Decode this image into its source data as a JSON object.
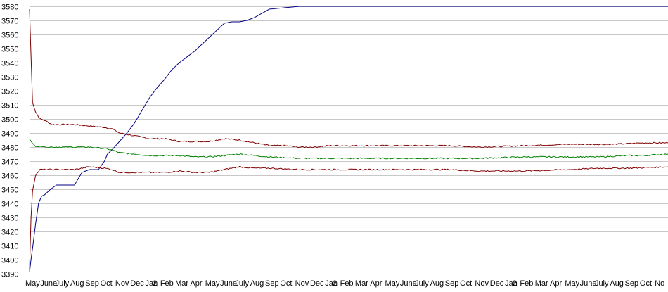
{
  "chart_data": {
    "type": "line",
    "title": "",
    "xlabel": "",
    "ylabel": "",
    "ylim": [
      3390,
      3580
    ],
    "grid": true,
    "legend": "none",
    "y_ticks": [
      3390,
      3400,
      3410,
      3420,
      3430,
      3440,
      3450,
      3460,
      3470,
      3480,
      3490,
      3500,
      3510,
      3520,
      3530,
      3540,
      3550,
      3560,
      3570,
      3580
    ],
    "x_ticks": [
      "May",
      "June",
      "July",
      "Aug",
      "Sep",
      "Oct",
      "Nov",
      "Dec",
      "Jan",
      "2",
      "Feb",
      "Mar",
      "Apr",
      "May",
      "June",
      "July",
      "Aug",
      "Sep",
      "Oct",
      "Nov",
      "Dec",
      "Jan",
      "2",
      "Feb",
      "Mar",
      "Apr",
      "May",
      "June",
      "July",
      "Aug",
      "Sep",
      "Oct",
      "Nov",
      "Dec",
      "Jan",
      "2",
      "Feb",
      "Mar",
      "Apr",
      "May",
      "June",
      "July",
      "Aug",
      "Sep",
      "Oct",
      "No"
    ],
    "x_tick_index": [
      0,
      1,
      2,
      3,
      4,
      5,
      6,
      7,
      8,
      8.5,
      9,
      10,
      11,
      12,
      13,
      14,
      15,
      16,
      17,
      18,
      19,
      20,
      20.5,
      21,
      22,
      23,
      24,
      25,
      26,
      27,
      28,
      29,
      30,
      31,
      32,
      32.5,
      33,
      34,
      35,
      36,
      37,
      38,
      39,
      40,
      41,
      42
    ],
    "x_range": [
      0,
      42.6
    ],
    "series": [
      {
        "color": "#000080",
        "x": [
          0,
          0.1,
          0.2,
          0.4,
          0.6,
          0.8,
          1.0,
          1.4,
          1.8,
          2.3,
          3.0,
          3.5,
          4.0,
          4.3,
          4.6,
          5.0,
          5.2,
          5.5,
          6.0,
          6.5,
          7.0,
          7.5,
          8.0,
          8.5,
          9.0,
          9.5,
          10.0,
          11.0,
          12.0,
          12.5,
          13.0,
          13.5,
          14.0,
          14.5,
          15.0,
          16.0,
          17.0,
          18.0,
          18.5,
          19.0,
          21.0,
          25.0,
          30.0,
          35.0,
          40.0,
          42.6
        ],
        "y": [
          3391,
          3400,
          3408,
          3425,
          3440,
          3445,
          3446,
          3450,
          3453,
          3453,
          3453,
          3462,
          3464,
          3464,
          3464,
          3470,
          3475,
          3478,
          3484,
          3490,
          3497,
          3506,
          3515,
          3522,
          3528,
          3535,
          3540,
          3548,
          3558,
          3563,
          3568,
          3569,
          3569,
          3570,
          3572,
          3578,
          3579,
          3580,
          3580,
          3580,
          3580,
          3580,
          3580,
          3580,
          3580,
          3580
        ]
      },
      {
        "color": "#800000",
        "x": [
          0,
          0.1,
          0.2,
          0.4,
          0.7,
          1.0,
          1.5,
          2.0,
          3.0,
          4.0,
          5.0,
          5.5,
          6.0,
          6.5,
          7.0,
          7.5,
          8.0,
          9.0,
          10.0,
          11.0,
          12.0,
          13.0,
          14.0,
          15.0,
          16.0,
          17.0,
          18.0,
          19.0,
          20.0,
          22.0,
          25.0,
          28.0,
          30.0,
          33.0,
          36.0,
          39.0,
          41.0,
          42.6
        ],
        "y": [
          3578,
          3545,
          3512,
          3505,
          3500,
          3499,
          3496,
          3496,
          3496,
          3495,
          3494,
          3493,
          3490,
          3489,
          3488,
          3487,
          3486,
          3486,
          3484,
          3484,
          3484,
          3486,
          3485,
          3483,
          3481,
          3481,
          3480,
          3480,
          3481,
          3481,
          3481,
          3481,
          3480,
          3481,
          3482,
          3482,
          3483,
          3483
        ]
      },
      {
        "color": "#008000",
        "x": [
          0,
          0.2,
          0.4,
          0.7,
          1.0,
          1.5,
          2.0,
          3.0,
          4.0,
          5.0,
          5.5,
          6.0,
          7.0,
          8.0,
          9.0,
          10.0,
          11.0,
          12.0,
          13.0,
          14.0,
          15.0,
          16.0,
          18.0,
          20.0,
          22.0,
          25.0,
          28.0,
          30.0,
          33.0,
          36.0,
          38.0,
          40.0,
          41.0,
          42.6
        ],
        "y": [
          3486,
          3483,
          3480,
          3481,
          3480,
          3480,
          3480,
          3480,
          3480,
          3479,
          3478,
          3476,
          3475,
          3474,
          3474,
          3474,
          3473,
          3473,
          3474,
          3475,
          3474,
          3473,
          3472,
          3472,
          3472,
          3472,
          3472,
          3472,
          3473,
          3473,
          3473,
          3474,
          3474,
          3475
        ]
      },
      {
        "color": "#800000",
        "x": [
          0,
          0.1,
          0.2,
          0.4,
          0.7,
          1.0,
          1.5,
          2.0,
          3.0,
          4.0,
          5.0,
          5.5,
          6.0,
          6.5,
          7.0,
          8.0,
          9.0,
          10.0,
          11.0,
          12.0,
          13.0,
          14.0,
          15.0,
          16.0,
          18.0,
          20.0,
          22.0,
          25.0,
          28.0,
          30.0,
          33.0,
          36.0,
          38.0,
          40.0,
          42.6
        ],
        "y": [
          3392,
          3430,
          3449,
          3460,
          3464,
          3464,
          3464,
          3464,
          3464,
          3466,
          3465,
          3464,
          3462,
          3462,
          3462,
          3462,
          3462,
          3463,
          3462,
          3462,
          3464,
          3466,
          3465,
          3465,
          3464,
          3464,
          3464,
          3464,
          3464,
          3463,
          3463,
          3464,
          3465,
          3465,
          3466
        ]
      }
    ]
  }
}
